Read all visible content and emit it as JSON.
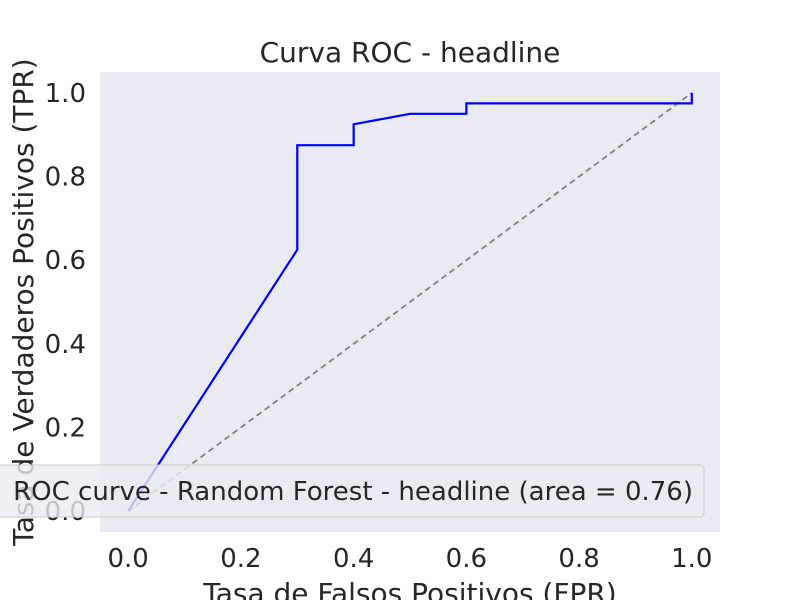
{
  "chart_data": {
    "type": "line",
    "title": "Curva ROC - headline",
    "xlabel": "Tasa de Falsos Positivos (FPR)",
    "ylabel": "Tasa de Verdaderos Positivos (TPR)",
    "xlim": [
      -0.05,
      1.05
    ],
    "ylim": [
      -0.05,
      1.05
    ],
    "xticks": [
      0.0,
      0.2,
      0.4,
      0.6,
      0.8,
      1.0
    ],
    "yticks": [
      0.0,
      0.2,
      0.4,
      0.6,
      0.8,
      1.0
    ],
    "xtick_labels": [
      "0.0",
      "0.2",
      "0.4",
      "0.6",
      "0.8",
      "1.0"
    ],
    "ytick_labels": [
      "0.0",
      "0.2",
      "0.4",
      "0.6",
      "0.8",
      "1.0"
    ],
    "grid": false,
    "legend": "lower-right",
    "background_color": "#eaeaf2",
    "series": [
      {
        "name": "ROC curve - Random Forest - headline (area = 0.76)",
        "color": "#0000ff",
        "style": "solid",
        "x": [
          0.0,
          0.3,
          0.3,
          0.4,
          0.4,
          0.5,
          0.6,
          0.6,
          1.0,
          1.0
        ],
        "y": [
          0.0,
          0.625,
          0.875,
          0.875,
          0.925,
          0.95,
          0.95,
          0.975,
          0.975,
          1.0
        ]
      },
      {
        "color": "#808080",
        "style": "dashed",
        "x": [
          0.0,
          1.0
        ],
        "y": [
          0.0,
          1.0
        ]
      }
    ]
  }
}
